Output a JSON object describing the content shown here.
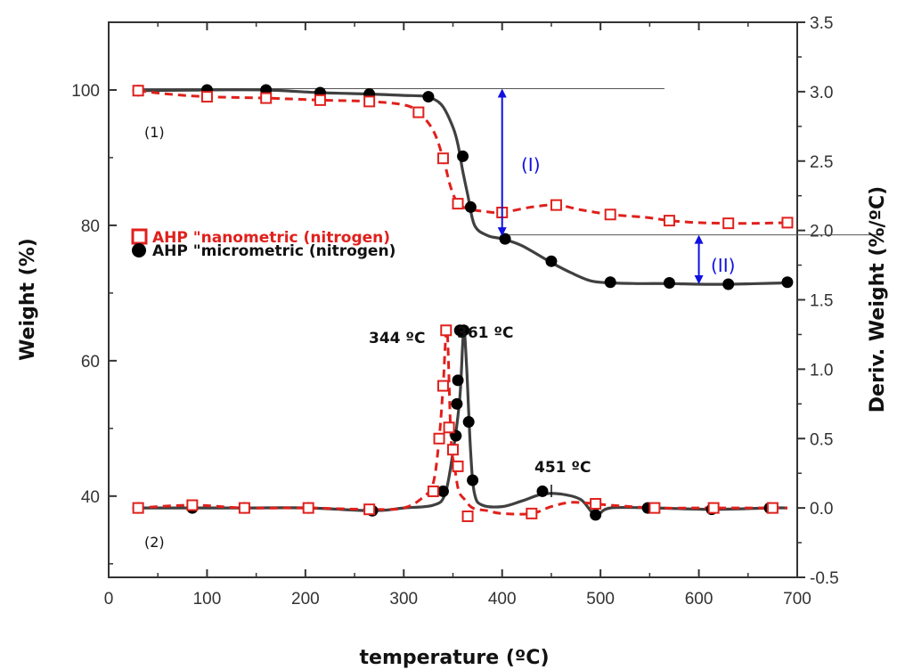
{
  "chart_data": {
    "type": "line",
    "xlabel": "temperature (ºC)",
    "ylabel": "Weight (%)",
    "y2label": "Deriv. Weight (%/ºC)",
    "xlim": [
      0,
      700
    ],
    "ylim": [
      28,
      110
    ],
    "y2lim": [
      -0.5,
      3.5
    ],
    "x_ticks": [
      "0",
      "100",
      "200",
      "300",
      "400",
      "500",
      "600",
      "700"
    ],
    "y_ticks": [
      "40",
      "60",
      "80",
      "100"
    ],
    "y2_ticks": [
      "-0.5",
      "0.0",
      "0.5",
      "1.0",
      "1.5",
      "2.0",
      "2.5",
      "3.0",
      "3.5"
    ],
    "legend": [
      {
        "label": "AHP \"nanometric (nitrogen)",
        "marker": "open-square",
        "color": "#e0201c"
      },
      {
        "label": "AHP \"micrometric (nitrogen)",
        "marker": "filled-circle",
        "color": "#000000"
      }
    ],
    "curve_labels": [
      "(1)",
      "(2)"
    ],
    "annotations": {
      "peak_nano": "344 ºC",
      "peak_micro": "361 ºC",
      "peak_second": "451 ºC",
      "step_I": "(I)",
      "step_II": "(II)"
    },
    "colors": {
      "nano": "#e0201c",
      "micro": "#404040",
      "micro_marker": "#000000",
      "arrow": "#1010e0"
    },
    "series": [
      {
        "curve": "weight",
        "axis": "left",
        "style": "dashed",
        "color": "#e0201c",
        "marker": "open-square",
        "x": [
          30,
          60,
          100,
          160,
          215,
          265,
          300,
          315,
          330,
          340,
          348,
          355,
          362,
          370,
          385,
          400,
          430,
          455,
          480,
          510,
          545,
          570,
          600,
          630,
          660,
          690
        ],
        "values": [
          99.9,
          99.4,
          99.0,
          98.8,
          98.5,
          98.3,
          97.8,
          96.7,
          94.0,
          89.9,
          85.5,
          83.2,
          82.6,
          82.3,
          82.0,
          81.9,
          82.7,
          83.0,
          82.3,
          81.6,
          81.2,
          80.7,
          80.4,
          80.3,
          80.3,
          80.4
        ]
      },
      {
        "curve": "weight",
        "axis": "left",
        "style": "solid",
        "color": "#404040",
        "marker": "filled-circle",
        "x": [
          30,
          100,
          160,
          215,
          265,
          300,
          320,
          330,
          340,
          350,
          355,
          360,
          365,
          372,
          385,
          400,
          420,
          450,
          470,
          490,
          510,
          540,
          570,
          600,
          630,
          660,
          690
        ],
        "values": [
          99.9,
          100.0,
          100.0,
          99.6,
          99.4,
          99.2,
          99.1,
          98.7,
          97.5,
          94.5,
          92.0,
          88.0,
          84.5,
          80.0,
          78.5,
          78.0,
          77.0,
          74.5,
          73.0,
          71.8,
          71.5,
          71.4,
          71.4,
          71.3,
          71.3,
          71.4,
          71.5
        ]
      },
      {
        "curve": "derivative",
        "axis": "right",
        "style": "dashed",
        "color": "#e0201c",
        "marker": "open-square",
        "x": [
          28,
          85,
          138,
          203,
          265,
          300,
          320,
          330,
          336,
          340,
          344,
          348,
          352,
          356,
          362,
          370,
          385,
          400,
          430,
          450,
          470,
          495,
          510,
          555,
          600,
          615,
          675,
          690
        ],
        "values": [
          0.0,
          0.02,
          0.0,
          0.0,
          -0.01,
          0.0,
          0.08,
          0.18,
          0.5,
          0.88,
          1.28,
          0.5,
          0.28,
          0.12,
          0.06,
          0.0,
          -0.02,
          -0.04,
          -0.04,
          0.01,
          0.04,
          0.03,
          0.02,
          0.0,
          0.0,
          0.0,
          0.0,
          0.0
        ]
      },
      {
        "curve": "derivative",
        "axis": "right",
        "style": "solid",
        "color": "#404040",
        "marker": "filled-circle",
        "x": [
          28,
          85,
          138,
          203,
          268,
          300,
          330,
          342,
          350,
          356,
          358,
          361,
          364,
          368,
          372,
          380,
          400,
          420,
          441,
          460,
          480,
          495,
          510,
          555,
          615,
          672,
          690
        ],
        "values": [
          0.0,
          0.0,
          0.0,
          0.0,
          -0.02,
          0.0,
          0.02,
          0.1,
          0.4,
          0.72,
          0.9,
          1.28,
          1.0,
          0.4,
          0.1,
          0.02,
          0.01,
          0.05,
          0.1,
          0.1,
          0.06,
          -0.05,
          0.0,
          0.0,
          -0.01,
          0.0,
          0.0
        ]
      }
    ],
    "marker_points": {
      "nano_weight": {
        "x": [
          30,
          100,
          160,
          215,
          265,
          315,
          340,
          355,
          400,
          455,
          510,
          570,
          630,
          690
        ],
        "y": [
          99.9,
          99.0,
          98.8,
          98.5,
          98.3,
          96.7,
          89.9,
          83.2,
          81.9,
          83.0,
          81.6,
          80.7,
          80.3,
          80.4
        ]
      },
      "micro_weight": {
        "x": [
          30,
          100,
          160,
          215,
          265,
          325,
          360,
          368,
          403,
          450,
          510,
          570,
          630,
          690
        ],
        "y": [
          99.9,
          100.0,
          100.0,
          99.6,
          99.4,
          99.0,
          90.2,
          82.7,
          78.0,
          74.7,
          71.6,
          71.5,
          71.3,
          71.6
        ]
      },
      "nano_deriv": {
        "x": [
          30,
          85,
          138,
          203,
          265,
          330,
          336,
          340,
          343,
          346,
          350,
          355,
          365,
          430,
          495,
          555,
          615,
          675
        ],
        "y": [
          0.0,
          0.02,
          0.0,
          0.0,
          -0.01,
          0.12,
          0.5,
          0.88,
          1.28,
          0.58,
          0.42,
          0.3,
          -0.06,
          -0.04,
          0.03,
          0.0,
          0.0,
          0.0
        ]
      },
      "micro_deriv": {
        "x": [
          30,
          85,
          138,
          203,
          268,
          340,
          353,
          354,
          355,
          357,
          361,
          366,
          370,
          441,
          495,
          548,
          613,
          672
        ],
        "y": [
          0.0,
          0.0,
          0.0,
          0.0,
          -0.02,
          0.12,
          0.52,
          0.75,
          0.92,
          1.28,
          1.28,
          0.62,
          0.2,
          0.12,
          -0.05,
          0.0,
          -0.01,
          0.0
        ]
      }
    },
    "reference_lines": [
      {
        "x": [
          30,
          565
        ],
        "y": [
          100.2,
          100.2
        ]
      },
      {
        "x": [
          400,
          785
        ],
        "y": [
          78.6,
          78.6
        ]
      }
    ],
    "arrows": [
      {
        "x": 400,
        "y": [
          100.2,
          78.4
        ],
        "label": "(I)"
      },
      {
        "x": 600,
        "y": [
          78.6,
          71.3
        ],
        "label": "(II)"
      }
    ],
    "grid": false,
    "legend_position": "center-left"
  }
}
